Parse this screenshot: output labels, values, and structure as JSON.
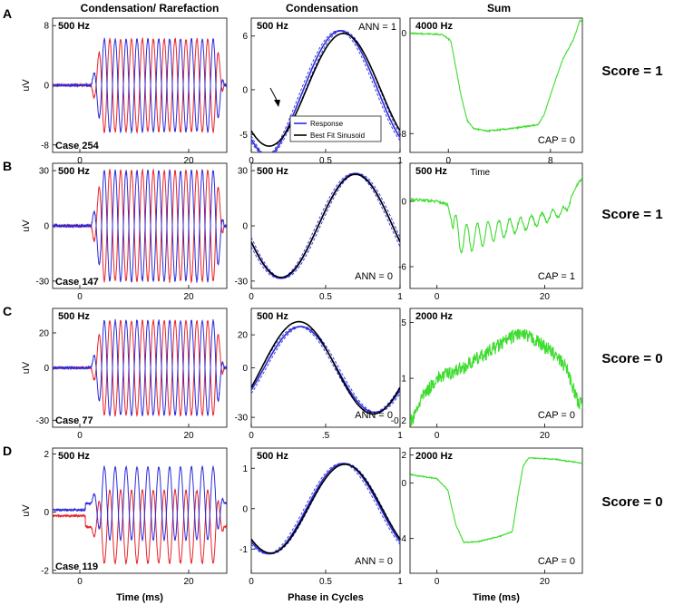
{
  "figure": {
    "col_headers": [
      "Condensation/ Rarefaction",
      "Condensation",
      "Sum"
    ],
    "row_letters": [
      "A",
      "B",
      "C",
      "D"
    ],
    "scores": [
      "Score = 1",
      "Score = 1",
      "Score = 0",
      "Score = 0"
    ],
    "legend": {
      "response": "Response",
      "fit": "Best Fit Sinusoid"
    },
    "xlabels": {
      "time": "Time (ms)",
      "phase": "Phase in Cycles",
      "time_short": "Time"
    },
    "ylabel": "uV",
    "colors": {
      "condensation": "#e8242a",
      "rarefaction": "#2b2bdb",
      "sum": "#3ddc2e",
      "fit": "#000000"
    }
  },
  "chart_data": [
    {
      "type": "line",
      "row": "A",
      "col": "waveform",
      "title": "500 Hz",
      "annotation": "Case 254",
      "xlim": [
        -5,
        27
      ],
      "ylim": [
        -9,
        9
      ],
      "xticks": [
        0,
        20
      ],
      "yticks": [
        8,
        0,
        -8
      ],
      "ytick_labels": [
        "8",
        "0",
        "-8"
      ],
      "ylabel": "uV",
      "xlabel": "",
      "freq_hz": 500,
      "onset_ms": 2,
      "offset_ms": 25,
      "series": [
        {
          "name": "Condensation",
          "color": "#e8242a",
          "amplitude": 6.2,
          "phase_sign": -1
        },
        {
          "name": "Rarefaction",
          "color": "#2b2bdb",
          "amplitude": 6.2,
          "phase_sign": 1
        }
      ]
    },
    {
      "type": "line",
      "row": "A",
      "col": "phase",
      "title": "500 Hz",
      "annotation": "ANN = 1",
      "xlim": [
        0,
        1
      ],
      "ylim": [
        -7,
        8
      ],
      "xticks": [
        0,
        0.5,
        1
      ],
      "xtick_labels": [
        "0",
        "0.5",
        "1"
      ],
      "yticks": [
        6,
        0,
        -5
      ],
      "ytick_labels": [
        "6",
        "0",
        "-5"
      ],
      "xlabel": "",
      "show_legend": true,
      "show_arrow": true,
      "series": [
        {
          "name": "Response",
          "color": "#2b2bdb",
          "amplitude": 6.6,
          "offset": 0,
          "peak_phase": 0.6,
          "distortion": 0.8
        },
        {
          "name": "Best Fit Sinusoid",
          "color": "#000000",
          "amplitude": 6.3,
          "offset": 0,
          "peak_phase": 0.62,
          "distortion": 0
        }
      ]
    },
    {
      "type": "line",
      "row": "A",
      "col": "sum",
      "title": "4000 Hz",
      "annotation": "CAP = 0",
      "xlim": [
        -3,
        10.5
      ],
      "ylim": [
        -9.5,
        1.2
      ],
      "xticks": [
        0,
        8
      ],
      "yticks": [
        0,
        -8
      ],
      "ytick_labels": [
        "0",
        "-8"
      ],
      "xlabel": "",
      "series": [
        {
          "name": "Sum",
          "color": "#3ddc2e",
          "shape": "cap",
          "noise": 0.1,
          "points": [
            [
              -3,
              0
            ],
            [
              -0.5,
              -0.1
            ],
            [
              0.2,
              -0.6
            ],
            [
              1,
              -5
            ],
            [
              1.5,
              -7
            ],
            [
              2,
              -7.6
            ],
            [
              3,
              -7.8
            ],
            [
              5,
              -7.6
            ],
            [
              7,
              -7.3
            ],
            [
              7.5,
              -6.5
            ],
            [
              8.3,
              -4
            ],
            [
              9,
              -2
            ],
            [
              9.8,
              -0.5
            ],
            [
              10.3,
              1.0
            ]
          ]
        }
      ]
    },
    {
      "type": "line",
      "row": "B",
      "col": "waveform",
      "title": "500 Hz",
      "annotation": "Case 147",
      "xlim": [
        -5,
        27
      ],
      "ylim": [
        -34,
        34
      ],
      "xticks": [
        0,
        20
      ],
      "yticks": [
        30,
        0,
        -30
      ],
      "ytick_labels": [
        "30",
        "0",
        "-30"
      ],
      "ylabel": "uV",
      "xlabel": "",
      "freq_hz": 500,
      "onset_ms": 2,
      "offset_ms": 25,
      "series": [
        {
          "name": "Condensation",
          "color": "#e8242a",
          "amplitude": 30,
          "phase_sign": -1
        },
        {
          "name": "Rarefaction",
          "color": "#2b2bdb",
          "amplitude": 30,
          "phase_sign": 1
        }
      ]
    },
    {
      "type": "line",
      "row": "B",
      "col": "phase",
      "title": "500 Hz",
      "annotation": "ANN = 0",
      "xlim": [
        0,
        1
      ],
      "ylim": [
        -34,
        34
      ],
      "xticks": [
        0,
        0.5,
        1
      ],
      "xtick_labels": [
        "0",
        "0.5",
        "1"
      ],
      "yticks": [
        30,
        0,
        -30
      ],
      "ytick_labels": [
        "30",
        "0",
        "-30"
      ],
      "xlabel": "",
      "series": [
        {
          "name": "Response",
          "color": "#2b2bdb",
          "amplitude": 28.5,
          "offset": 0,
          "peak_phase": 0.7,
          "distortion": 0
        },
        {
          "name": "Best Fit Sinusoid",
          "color": "#000000",
          "amplitude": 28,
          "offset": 0,
          "peak_phase": 0.7,
          "distortion": 0
        }
      ]
    },
    {
      "type": "line",
      "row": "B",
      "col": "sum",
      "title": "500 Hz",
      "annotation": "CAP = 1",
      "xlim": [
        -5,
        27
      ],
      "ylim": [
        -8,
        3.5
      ],
      "xticks": [
        0,
        20
      ],
      "yticks": [
        0,
        -6
      ],
      "ytick_labels": [
        "0",
        "-6"
      ],
      "xlabel": "Time",
      "series": [
        {
          "name": "Sum",
          "color": "#3ddc2e",
          "shape": "osc",
          "noise": 0.25,
          "points": [
            [
              -5,
              0.2
            ],
            [
              0,
              0
            ],
            [
              2,
              -0.3
            ],
            [
              3,
              -2.5
            ],
            [
              5,
              -3.5
            ],
            [
              10,
              -2.8
            ],
            [
              15,
              -2.2
            ],
            [
              20,
              -1.5
            ],
            [
              24,
              -0.8
            ],
            [
              25,
              0.5
            ],
            [
              26,
              1.5
            ],
            [
              27,
              2.2
            ]
          ]
        }
      ]
    },
    {
      "type": "line",
      "row": "C",
      "col": "waveform",
      "title": "500 Hz",
      "annotation": "Case 77",
      "xlim": [
        -5,
        27
      ],
      "ylim": [
        -34,
        34
      ],
      "xticks": [
        0,
        20
      ],
      "yticks": [
        20,
        0,
        -30
      ],
      "ytick_labels": [
        "20",
        "0",
        "-30"
      ],
      "ylabel": "uV",
      "xlabel": "",
      "freq_hz": 500,
      "onset_ms": 2,
      "offset_ms": 25,
      "series": [
        {
          "name": "Condensation",
          "color": "#e8242a",
          "amplitude": 27,
          "phase_sign": -1
        },
        {
          "name": "Rarefaction",
          "color": "#2b2bdb",
          "amplitude": 27,
          "phase_sign": 1
        }
      ]
    },
    {
      "type": "line",
      "row": "C",
      "col": "phase",
      "title": "500 Hz",
      "annotation": "ANN = 0",
      "xlim": [
        0,
        1
      ],
      "ylim": [
        -36,
        36
      ],
      "xticks": [
        0,
        0.5,
        1
      ],
      "xtick_labels": [
        "0",
        ".5",
        "1"
      ],
      "yticks": [
        20,
        0,
        -30
      ],
      "ytick_labels": [
        "20",
        "0",
        "-30"
      ],
      "xlabel": "",
      "series": [
        {
          "name": "Response",
          "color": "#2b2bdb",
          "amplitude": 26,
          "offset": -1,
          "peak_phase": 0.33,
          "distortion": 0
        },
        {
          "name": "Best Fit Sinusoid",
          "color": "#000000",
          "amplitude": 28,
          "offset": 0,
          "peak_phase": 0.32,
          "distortion": 0
        }
      ]
    },
    {
      "type": "line",
      "row": "C",
      "col": "sum",
      "title": "2000 Hz",
      "annotation": "CAP = 0",
      "xlim": [
        -5,
        27
      ],
      "ylim": [
        -0.25,
        0.6
      ],
      "xticks": [
        0,
        20
      ],
      "yticks": [
        0.5,
        0.1,
        -0.2
      ],
      "ytick_labels": [
        ".5",
        ".1",
        "-0.2"
      ],
      "xlabel": "",
      "series": [
        {
          "name": "Sum",
          "color": "#3ddc2e",
          "shape": "noisy",
          "noise": 0.045,
          "points": [
            [
              -4.5,
              -0.2
            ],
            [
              -3,
              -0.05
            ],
            [
              0,
              0.1
            ],
            [
              5,
              0.18
            ],
            [
              10,
              0.3
            ],
            [
              15,
              0.42
            ],
            [
              18,
              0.38
            ],
            [
              21,
              0.3
            ],
            [
              24,
              0.18
            ],
            [
              26,
              -0.05
            ],
            [
              27,
              -0.1
            ]
          ]
        }
      ]
    },
    {
      "type": "line",
      "row": "D",
      "col": "waveform",
      "title": "500 Hz",
      "annotation": "Case 119",
      "xlim": [
        -5,
        27
      ],
      "ylim": [
        -2.1,
        2.2
      ],
      "xticks": [
        0,
        20
      ],
      "yticks": [
        2,
        0,
        -2
      ],
      "ytick_labels": [
        "2",
        "0",
        "-2"
      ],
      "ylabel": "uV",
      "xlabel": "Time (ms)",
      "freq_hz": 500,
      "onset_ms": 2,
      "offset_ms": 25,
      "series": [
        {
          "name": "Condensation",
          "color": "#e8242a",
          "amplitude": 1.25,
          "phase_sign": -1,
          "baseline": -0.5
        },
        {
          "name": "Rarefaction",
          "color": "#2b2bdb",
          "amplitude": 1.25,
          "phase_sign": 1,
          "baseline": 0.3
        }
      ]
    },
    {
      "type": "line",
      "row": "D",
      "col": "phase",
      "title": "500 Hz",
      "annotation": "ANN = 0",
      "xlim": [
        0,
        1
      ],
      "ylim": [
        -1.6,
        1.5
      ],
      "xticks": [
        0,
        0.5,
        1
      ],
      "xtick_labels": [
        "0",
        "0.5",
        "1"
      ],
      "yticks": [
        1,
        0,
        -1
      ],
      "ytick_labels": [
        "1",
        "0",
        "-1"
      ],
      "xlabel": "Phase in Cycles",
      "series": [
        {
          "name": "Response",
          "color": "#2b2bdb",
          "amplitude": 1.12,
          "offset": 0,
          "peak_phase": 0.62,
          "distortion": 0
        },
        {
          "name": "Best Fit Sinusoid",
          "color": "#000000",
          "amplitude": 1.1,
          "offset": 0,
          "peak_phase": 0.63,
          "distortion": 0
        }
      ]
    },
    {
      "type": "line",
      "row": "D",
      "col": "sum",
      "title": "2000 Hz",
      "annotation": "CAP = 0",
      "xlim": [
        -5,
        27
      ],
      "ylim": [
        -6.5,
        2.5
      ],
      "xticks": [
        0,
        20
      ],
      "yticks": [
        2,
        0,
        -4
      ],
      "ytick_labels": [
        "2",
        "0",
        "-4"
      ],
      "xlabel": "Time (ms)",
      "series": [
        {
          "name": "Sum",
          "color": "#3ddc2e",
          "shape": "cap",
          "noise": 0.08,
          "points": [
            [
              -5,
              0.6
            ],
            [
              0,
              0.3
            ],
            [
              2,
              -0.5
            ],
            [
              3.5,
              -3.0
            ],
            [
              5,
              -4.3
            ],
            [
              8,
              -4.2
            ],
            [
              12,
              -3.8
            ],
            [
              14,
              -3.5
            ],
            [
              15,
              -1
            ],
            [
              16,
              1.2
            ],
            [
              17,
              1.8
            ],
            [
              22,
              1.7
            ],
            [
              27,
              1.4
            ]
          ]
        }
      ]
    }
  ]
}
